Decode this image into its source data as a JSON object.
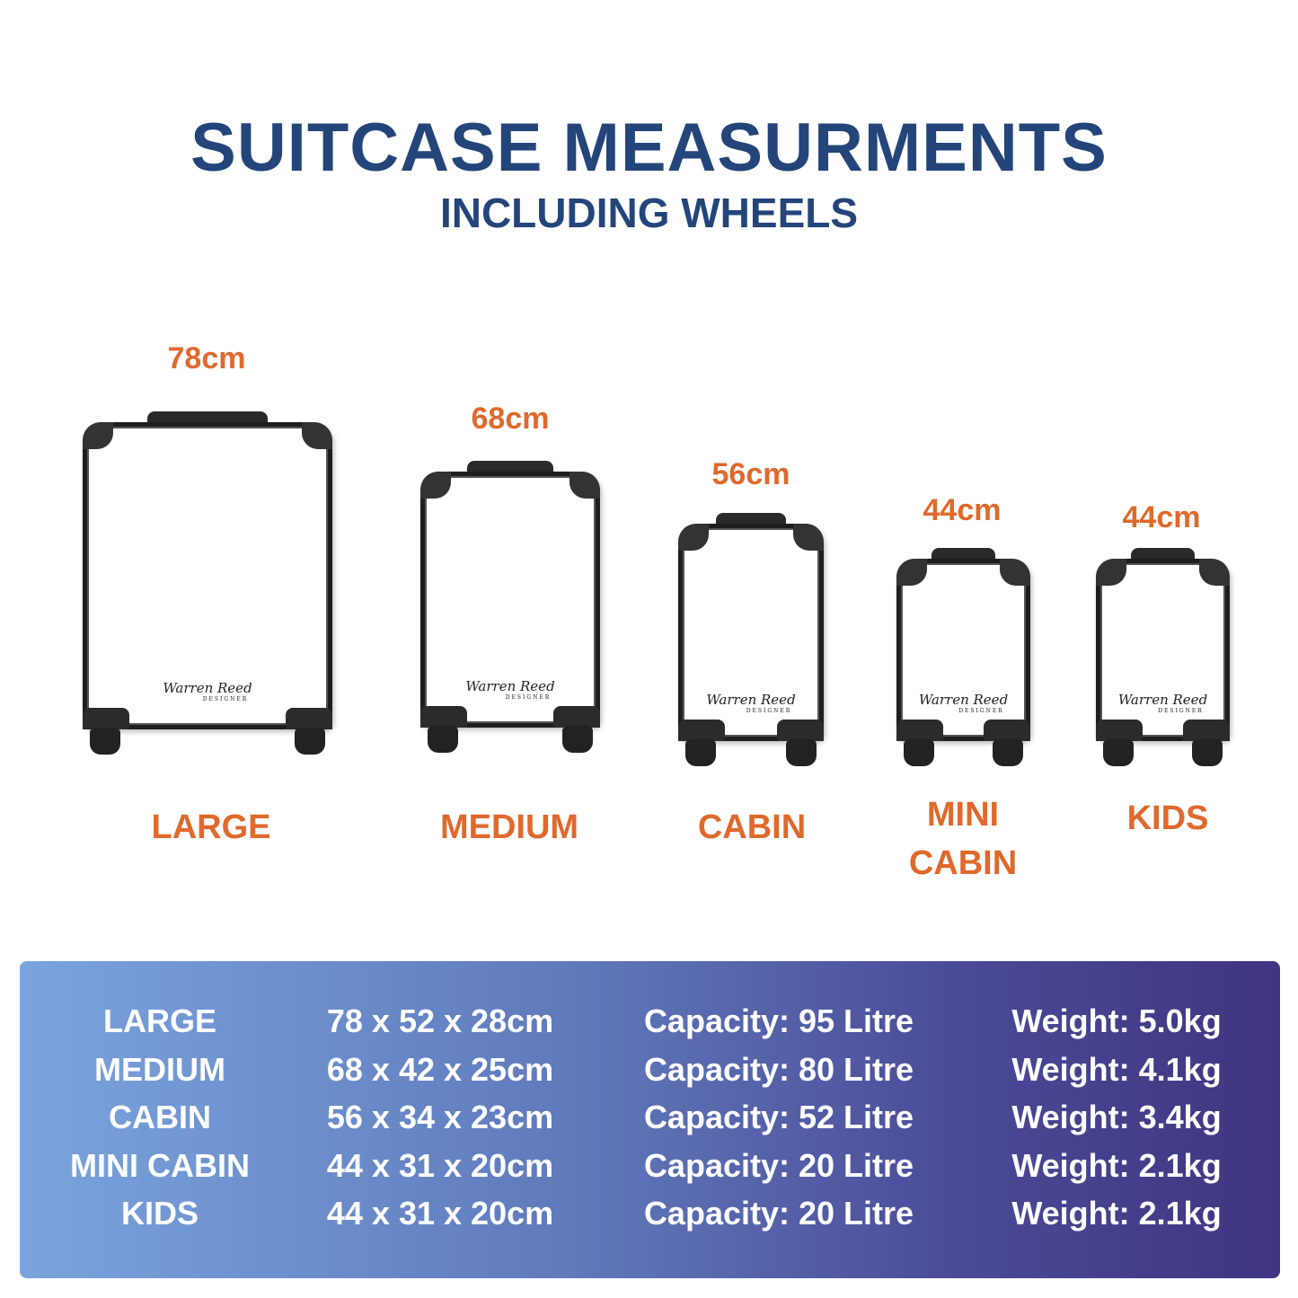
{
  "header": {
    "title": "SUITCASE MEASURMENTS",
    "subtitle": "INCLUDING WHEELS"
  },
  "colors": {
    "title": "#23457a",
    "accent": "#e0692c",
    "table_gradient_start": "#7aa4dd",
    "table_gradient_end": "#3f3580"
  },
  "logo": {
    "script": "Warren Reed",
    "tag": "DESIGNER"
  },
  "suitcases": [
    {
      "height": "78cm",
      "name": "LARGE"
    },
    {
      "height": "68cm",
      "name": "MEDIUM"
    },
    {
      "height": "56cm",
      "name": "CABIN"
    },
    {
      "height": "44cm",
      "name_line1": "MINI",
      "name_line2": "CABIN"
    },
    {
      "height": "44cm",
      "name": "KIDS"
    }
  ],
  "table": {
    "rows": [
      {
        "name": "LARGE",
        "dims": "78 x 52 x 28cm",
        "capacity": "Capacity: 95 Litre",
        "weight": "Weight: 5.0kg"
      },
      {
        "name": "MEDIUM",
        "dims": "68 x 42 x 25cm",
        "capacity": "Capacity: 80 Litre",
        "weight": "Weight: 4.1kg"
      },
      {
        "name": "CABIN",
        "dims": "56 x 34 x 23cm",
        "capacity": "Capacity: 52 Litre",
        "weight": "Weight: 3.4kg"
      },
      {
        "name": "MINI CABIN",
        "dims": "44 x 31 x 20cm",
        "capacity": "Capacity: 20 Litre",
        "weight": "Weight: 2.1kg"
      },
      {
        "name": "KIDS",
        "dims": "44 x 31 x 20cm",
        "capacity": "Capacity: 20 Litre",
        "weight": "Weight: 2.1kg"
      }
    ]
  }
}
